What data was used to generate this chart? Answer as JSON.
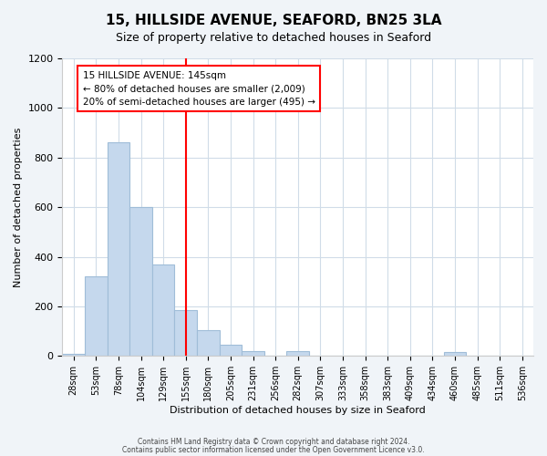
{
  "title": "15, HILLSIDE AVENUE, SEAFORD, BN25 3LA",
  "subtitle": "Size of property relative to detached houses in Seaford",
  "xlabel": "Distribution of detached houses by size in Seaford",
  "ylabel": "Number of detached properties",
  "bar_labels": [
    "28sqm",
    "53sqm",
    "78sqm",
    "104sqm",
    "129sqm",
    "155sqm",
    "180sqm",
    "205sqm",
    "231sqm",
    "256sqm",
    "282sqm",
    "307sqm",
    "333sqm",
    "358sqm",
    "383sqm",
    "409sqm",
    "434sqm",
    "460sqm",
    "485sqm",
    "511sqm",
    "536sqm"
  ],
  "bar_values": [
    10,
    320,
    860,
    600,
    370,
    185,
    105,
    47,
    20,
    0,
    20,
    0,
    0,
    0,
    0,
    0,
    0,
    15,
    0,
    0,
    0
  ],
  "bar_color": "#c5d8ed",
  "bar_edge_color": "#a0bdd8",
  "vline_x": 5,
  "vline_color": "red",
  "annotation_title": "15 HILLSIDE AVENUE: 145sqm",
  "annotation_line1": "← 80% of detached houses are smaller (2,009)",
  "annotation_line2": "20% of semi-detached houses are larger (495) →",
  "annotation_box_color": "white",
  "annotation_box_edge": "red",
  "ylim": [
    0,
    1200
  ],
  "yticks": [
    0,
    200,
    400,
    600,
    800,
    1000,
    1200
  ],
  "footer1": "Contains HM Land Registry data © Crown copyright and database right 2024.",
  "footer2": "Contains public sector information licensed under the Open Government Licence v3.0.",
  "background_color": "#f0f4f8",
  "plot_bg_color": "white",
  "grid_color": "#d0dce8"
}
